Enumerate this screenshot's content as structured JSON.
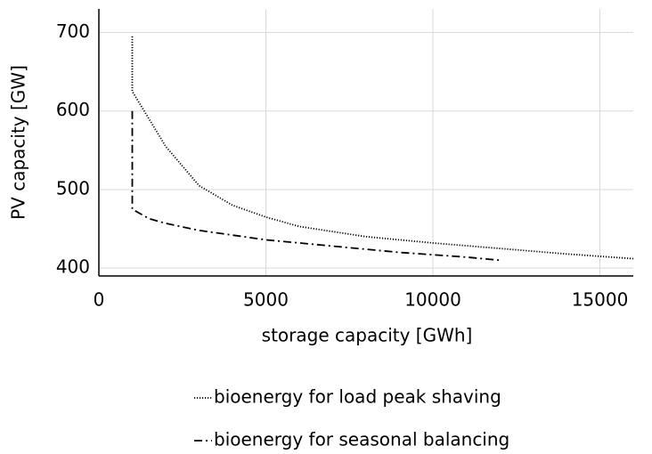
{
  "chart_data": {
    "type": "line",
    "xlabel": "storage capacity [GWh]",
    "ylabel": "PV capacity [GW]",
    "xlim": [
      0,
      16000
    ],
    "xticks": [
      0,
      5000,
      10000,
      15000
    ],
    "ylim": [
      390,
      730
    ],
    "yticks": [
      400,
      500,
      600,
      700
    ],
    "grid": true,
    "legend": "bottom",
    "series": [
      {
        "name": "bioenergy for load peak shaving",
        "color": "#000000",
        "dash": "dotted",
        "x": [
          1000,
          1000,
          1500,
          2000,
          3000,
          4000,
          5000,
          6000,
          8000,
          10000,
          12000,
          14000,
          16000
        ],
        "values": [
          695,
          625,
          590,
          555,
          505,
          480,
          465,
          453,
          440,
          432,
          425,
          418,
          412
        ]
      },
      {
        "name": "bioenergy for seasonal balancing",
        "color": "#000000",
        "dash": "dashdot",
        "x": [
          1000,
          1000,
          1500,
          2000,
          3000,
          5000,
          7000,
          9000,
          11000,
          12000
        ],
        "values": [
          600,
          475,
          463,
          457,
          448,
          436,
          428,
          420,
          414,
          410
        ]
      }
    ]
  }
}
